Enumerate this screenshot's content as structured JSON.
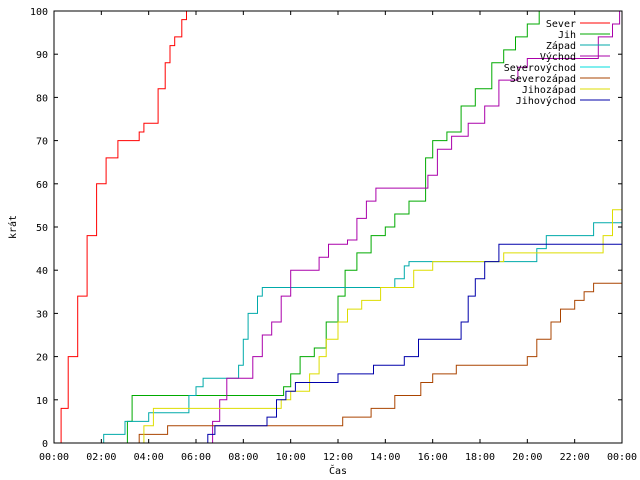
{
  "chart_data": {
    "type": "line",
    "xlabel": "Čas",
    "ylabel": "krát",
    "xlim": [
      0,
      24
    ],
    "ylim": [
      0,
      100
    ],
    "x_ticks": [
      "00:00",
      "02:00",
      "04:00",
      "06:00",
      "08:00",
      "10:00",
      "12:00",
      "14:00",
      "16:00",
      "18:00",
      "20:00",
      "22:00",
      "00:00"
    ],
    "y_ticks": [
      0,
      10,
      20,
      30,
      40,
      50,
      60,
      70,
      80,
      90,
      100
    ],
    "grid": false,
    "legend_position": "top-right",
    "series": [
      {
        "name": "Sever",
        "color": "#ff0000",
        "points": [
          [
            0,
            0
          ],
          [
            0.3,
            8
          ],
          [
            0.6,
            20
          ],
          [
            1,
            34
          ],
          [
            1.4,
            48
          ],
          [
            1.8,
            60
          ],
          [
            2.2,
            66
          ],
          [
            2.7,
            70
          ],
          [
            3.4,
            70
          ],
          [
            3.6,
            72
          ],
          [
            3.8,
            74
          ],
          [
            4.1,
            74
          ],
          [
            4.4,
            82
          ],
          [
            4.7,
            88
          ],
          [
            4.9,
            92
          ],
          [
            5.1,
            94
          ],
          [
            5.4,
            98
          ],
          [
            5.6,
            100
          ]
        ]
      },
      {
        "name": "Jih",
        "color": "#00aa00",
        "points": [
          [
            0,
            0
          ],
          [
            3,
            0
          ],
          [
            3.1,
            5
          ],
          [
            3.3,
            11
          ],
          [
            9.5,
            11
          ],
          [
            9.7,
            13
          ],
          [
            10,
            16
          ],
          [
            10.4,
            20
          ],
          [
            11,
            22
          ],
          [
            11.5,
            28
          ],
          [
            12,
            34
          ],
          [
            12.3,
            40
          ],
          [
            12.8,
            44
          ],
          [
            13.4,
            48
          ],
          [
            14,
            50
          ],
          [
            14.4,
            53
          ],
          [
            15,
            56
          ],
          [
            15.7,
            66
          ],
          [
            16,
            70
          ],
          [
            16.6,
            72
          ],
          [
            17.2,
            78
          ],
          [
            17.8,
            82
          ],
          [
            18.5,
            88
          ],
          [
            19,
            91
          ],
          [
            19.5,
            94
          ],
          [
            20,
            97
          ],
          [
            20.5,
            100
          ]
        ]
      },
      {
        "name": "Západ",
        "color": "#00aaaa",
        "points": [
          [
            0,
            0
          ],
          [
            2,
            0
          ],
          [
            2.1,
            2
          ],
          [
            2.8,
            2
          ],
          [
            3,
            5
          ],
          [
            3.5,
            5
          ],
          [
            4,
            7
          ],
          [
            5,
            7
          ],
          [
            5.7,
            11
          ],
          [
            6,
            13
          ],
          [
            6.3,
            15
          ],
          [
            7.6,
            15
          ],
          [
            7.8,
            18
          ],
          [
            8,
            24
          ],
          [
            8.2,
            30
          ],
          [
            8.6,
            34
          ],
          [
            8.8,
            36
          ],
          [
            14,
            36
          ],
          [
            14.4,
            38
          ],
          [
            14.8,
            41
          ],
          [
            15,
            42
          ],
          [
            20,
            42
          ],
          [
            20.4,
            45
          ],
          [
            20.8,
            48
          ],
          [
            22.8,
            51
          ],
          [
            24,
            51
          ]
        ]
      },
      {
        "name": "Východ",
        "color": "#aa00aa",
        "points": [
          [
            0,
            0
          ],
          [
            6.5,
            0
          ],
          [
            6.7,
            5
          ],
          [
            7,
            10
          ],
          [
            7.3,
            15
          ],
          [
            8.2,
            15
          ],
          [
            8.4,
            20
          ],
          [
            8.8,
            25
          ],
          [
            9.2,
            28
          ],
          [
            9.6,
            34
          ],
          [
            10,
            40
          ],
          [
            11,
            40
          ],
          [
            11.2,
            43
          ],
          [
            11.6,
            46
          ],
          [
            12.4,
            47
          ],
          [
            12.8,
            52
          ],
          [
            13.2,
            56
          ],
          [
            13.6,
            59
          ],
          [
            15.4,
            59
          ],
          [
            15.8,
            62
          ],
          [
            16.2,
            68
          ],
          [
            16.8,
            71
          ],
          [
            17.5,
            74
          ],
          [
            18.2,
            78
          ],
          [
            18.8,
            84
          ],
          [
            19.6,
            87
          ],
          [
            20,
            89
          ],
          [
            22.5,
            89
          ],
          [
            23,
            94
          ],
          [
            23.6,
            97
          ],
          [
            23.9,
            100
          ]
        ]
      },
      {
        "name": "Severovýchod",
        "color": "#00dddd",
        "points": [
          [
            0,
            0
          ],
          [
            8.8,
            0
          ]
        ]
      },
      {
        "name": "Severozápad",
        "color": "#aa4400",
        "points": [
          [
            0,
            0
          ],
          [
            3.4,
            0
          ],
          [
            3.6,
            2
          ],
          [
            4.6,
            2
          ],
          [
            4.8,
            4
          ],
          [
            12,
            4
          ],
          [
            12.2,
            6
          ],
          [
            13,
            6
          ],
          [
            13.4,
            8
          ],
          [
            14,
            8
          ],
          [
            14.4,
            11
          ],
          [
            15.5,
            14
          ],
          [
            16,
            16
          ],
          [
            17,
            18
          ],
          [
            19.6,
            18
          ],
          [
            20,
            20
          ],
          [
            20.4,
            24
          ],
          [
            21,
            28
          ],
          [
            21.4,
            31
          ],
          [
            22,
            33
          ],
          [
            22.4,
            35
          ],
          [
            22.8,
            37
          ],
          [
            24,
            37
          ]
        ]
      },
      {
        "name": "Jihozápad",
        "color": "#dddd00",
        "points": [
          [
            0,
            0
          ],
          [
            3.6,
            0
          ],
          [
            3.8,
            4
          ],
          [
            4.2,
            8
          ],
          [
            9.2,
            8
          ],
          [
            9.6,
            10
          ],
          [
            10,
            12
          ],
          [
            10.8,
            16
          ],
          [
            11.2,
            20
          ],
          [
            11.5,
            24
          ],
          [
            12,
            28
          ],
          [
            12.4,
            31
          ],
          [
            13,
            33
          ],
          [
            13.8,
            36
          ],
          [
            15.2,
            40
          ],
          [
            16,
            42
          ],
          [
            18.2,
            42
          ],
          [
            19,
            44
          ],
          [
            22.8,
            44
          ],
          [
            23.2,
            48
          ],
          [
            23.6,
            54
          ],
          [
            24,
            60
          ]
        ]
      },
      {
        "name": "Jihovýchod",
        "color": "#0000aa",
        "points": [
          [
            0,
            0
          ],
          [
            6.4,
            0
          ],
          [
            6.5,
            2
          ],
          [
            6.8,
            4
          ],
          [
            8.4,
            4
          ],
          [
            9,
            6
          ],
          [
            9.4,
            10
          ],
          [
            9.8,
            12
          ],
          [
            10.2,
            14
          ],
          [
            11.6,
            14
          ],
          [
            12,
            16
          ],
          [
            13.5,
            18
          ],
          [
            14.8,
            20
          ],
          [
            15.4,
            24
          ],
          [
            17,
            24
          ],
          [
            17.2,
            28
          ],
          [
            17.5,
            34
          ],
          [
            17.8,
            38
          ],
          [
            18.2,
            42
          ],
          [
            18.8,
            46
          ],
          [
            24,
            46
          ]
        ]
      }
    ]
  }
}
